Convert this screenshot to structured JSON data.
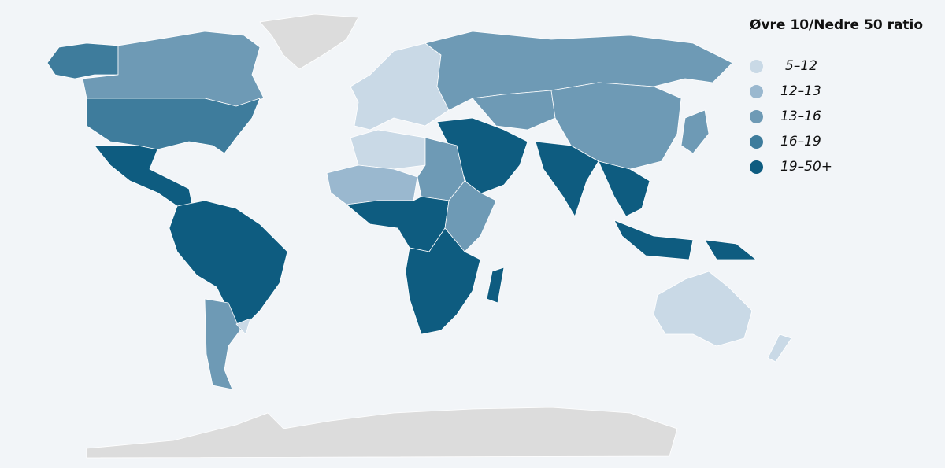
{
  "legend": {
    "title": "Øvre 10/Nedre 50 ratio",
    "items": [
      {
        "label": "5–12",
        "color": "#c9d9e6"
      },
      {
        "label": "12–13",
        "color": "#9ab8cf"
      },
      {
        "label": "13–16",
        "color": "#6e9ab5"
      },
      {
        "label": "16–19",
        "color": "#3e7c9c"
      },
      {
        "label": "19–50+",
        "color": "#0e5c80"
      }
    ]
  },
  "colors": {
    "no_data": "#dcdcdc",
    "background": "#f2f5f8",
    "border": "#ffffff"
  },
  "regions": [
    {
      "name": "Greenland",
      "class": "no_data"
    },
    {
      "name": "Alaska",
      "class": 3
    },
    {
      "name": "Canada",
      "class": 2
    },
    {
      "name": "United States",
      "class": 3
    },
    {
      "name": "Mexico & Central America",
      "class": 4
    },
    {
      "name": "South America (north/central)",
      "class": 4
    },
    {
      "name": "Argentina",
      "class": 2
    },
    {
      "name": "Uruguay",
      "class": 0
    },
    {
      "name": "Europe",
      "class": 0
    },
    {
      "name": "Russia",
      "class": 2
    },
    {
      "name": "Central Asia",
      "class": 2
    },
    {
      "name": "China",
      "class": 2
    },
    {
      "name": "Middle East",
      "class": 4
    },
    {
      "name": "India",
      "class": 4
    },
    {
      "name": "Southeast Asia",
      "class": 4
    },
    {
      "name": "Indonesia",
      "class": 4
    },
    {
      "name": "Papua New Guinea",
      "class": 4
    },
    {
      "name": "Japan",
      "class": 2
    },
    {
      "name": "North Africa west",
      "class": 0
    },
    {
      "name": "Sahel",
      "class": 1
    },
    {
      "name": "Egypt & Sudan",
      "class": 2
    },
    {
      "name": "West & Central Africa",
      "class": 4
    },
    {
      "name": "East Africa",
      "class": 2
    },
    {
      "name": "Southern Africa",
      "class": 4
    },
    {
      "name": "Madagascar",
      "class": 4
    },
    {
      "name": "Australia",
      "class": 0
    },
    {
      "name": "New Zealand",
      "class": 0
    },
    {
      "name": "Antarctica",
      "class": "no_data"
    }
  ]
}
